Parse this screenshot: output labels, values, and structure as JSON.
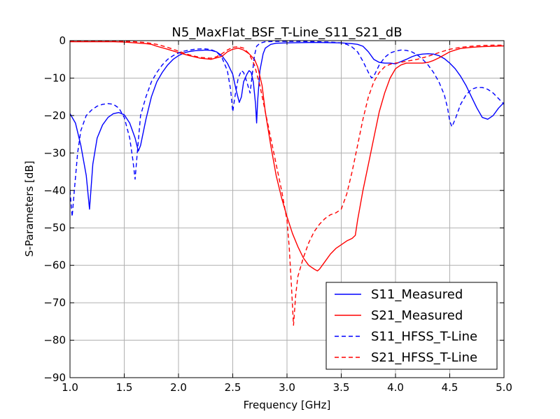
{
  "chart_data": {
    "type": "line",
    "title": "N5_MaxFlat_BSF_T-Line_S11_S21_dB",
    "xlabel": "Frequency [GHz]",
    "ylabel": "S-Parameters [dB]",
    "xlim": [
      1.0,
      5.0
    ],
    "ylim": [
      -90,
      0
    ],
    "xticks": [
      1.0,
      1.5,
      2.0,
      2.5,
      3.0,
      3.5,
      4.0,
      4.5,
      5.0
    ],
    "xtick_labels": [
      "1.0",
      "1.5",
      "2.0",
      "2.5",
      "3.0",
      "3.5",
      "4.0",
      "4.5",
      "5.0"
    ],
    "yticks": [
      0,
      -10,
      -20,
      -30,
      -40,
      -50,
      -60,
      -70,
      -80,
      -90
    ],
    "ytick_labels": [
      "0",
      "−10",
      "−20",
      "−30",
      "−40",
      "−50",
      "−60",
      "−70",
      "−80",
      "−90"
    ],
    "grid": true,
    "legend_position": "bottom-right",
    "series": [
      {
        "name": "S11_Measured",
        "color": "#0000ff",
        "dash": "solid",
        "points": [
          [
            1.0,
            -19.5
          ],
          [
            1.05,
            -22
          ],
          [
            1.1,
            -28
          ],
          [
            1.15,
            -36
          ],
          [
            1.18,
            -45
          ],
          [
            1.21,
            -33
          ],
          [
            1.25,
            -26
          ],
          [
            1.3,
            -22.5
          ],
          [
            1.35,
            -20.5
          ],
          [
            1.4,
            -19.5
          ],
          [
            1.45,
            -19.2
          ],
          [
            1.5,
            -19.8
          ],
          [
            1.55,
            -22
          ],
          [
            1.6,
            -26
          ],
          [
            1.63,
            -29.5
          ],
          [
            1.65,
            -28
          ],
          [
            1.7,
            -21
          ],
          [
            1.75,
            -15
          ],
          [
            1.8,
            -11
          ],
          [
            1.85,
            -8.5
          ],
          [
            1.9,
            -6.5
          ],
          [
            1.95,
            -5
          ],
          [
            2.0,
            -4
          ],
          [
            2.05,
            -3.3
          ],
          [
            2.1,
            -2.9
          ],
          [
            2.15,
            -2.7
          ],
          [
            2.2,
            -2.6
          ],
          [
            2.25,
            -2.5
          ],
          [
            2.3,
            -2.6
          ],
          [
            2.35,
            -3
          ],
          [
            2.4,
            -4
          ],
          [
            2.45,
            -6
          ],
          [
            2.5,
            -9
          ],
          [
            2.53,
            -13
          ],
          [
            2.56,
            -16.5
          ],
          [
            2.58,
            -15
          ],
          [
            2.6,
            -11
          ],
          [
            2.63,
            -9
          ],
          [
            2.65,
            -8
          ],
          [
            2.67,
            -8.5
          ],
          [
            2.69,
            -11
          ],
          [
            2.71,
            -17
          ],
          [
            2.72,
            -22
          ],
          [
            2.73,
            -16
          ],
          [
            2.75,
            -8
          ],
          [
            2.78,
            -3.5
          ],
          [
            2.8,
            -2
          ],
          [
            2.85,
            -1
          ],
          [
            2.9,
            -0.7
          ],
          [
            3.0,
            -0.6
          ],
          [
            3.1,
            -0.55
          ],
          [
            3.2,
            -0.5
          ],
          [
            3.3,
            -0.5
          ],
          [
            3.4,
            -0.55
          ],
          [
            3.5,
            -0.6
          ],
          [
            3.6,
            -0.8
          ],
          [
            3.65,
            -1
          ],
          [
            3.7,
            -1.5
          ],
          [
            3.75,
            -3
          ],
          [
            3.8,
            -5
          ],
          [
            3.85,
            -5.8
          ],
          [
            3.9,
            -6
          ],
          [
            3.95,
            -6
          ],
          [
            4.0,
            -6.2
          ],
          [
            4.05,
            -5.6
          ],
          [
            4.1,
            -5
          ],
          [
            4.15,
            -4.3
          ],
          [
            4.2,
            -3.8
          ],
          [
            4.25,
            -3.6
          ],
          [
            4.3,
            -3.5
          ],
          [
            4.35,
            -3.6
          ],
          [
            4.4,
            -4
          ],
          [
            4.45,
            -4.8
          ],
          [
            4.5,
            -6
          ],
          [
            4.55,
            -7.5
          ],
          [
            4.6,
            -9.5
          ],
          [
            4.65,
            -12
          ],
          [
            4.7,
            -15
          ],
          [
            4.75,
            -18
          ],
          [
            4.8,
            -20.5
          ],
          [
            4.85,
            -21
          ],
          [
            4.9,
            -20
          ],
          [
            4.95,
            -18
          ],
          [
            5.0,
            -16.5
          ]
        ]
      },
      {
        "name": "S21_Measured",
        "color": "#ff0000",
        "dash": "solid",
        "points": [
          [
            1.0,
            -0.3
          ],
          [
            1.2,
            -0.3
          ],
          [
            1.4,
            -0.3
          ],
          [
            1.5,
            -0.4
          ],
          [
            1.6,
            -0.6
          ],
          [
            1.7,
            -0.8
          ],
          [
            1.75,
            -1
          ],
          [
            1.8,
            -1.5
          ],
          [
            1.9,
            -2.3
          ],
          [
            2.0,
            -3.2
          ],
          [
            2.1,
            -4
          ],
          [
            2.2,
            -4.7
          ],
          [
            2.3,
            -5
          ],
          [
            2.4,
            -4.2
          ],
          [
            2.45,
            -3
          ],
          [
            2.5,
            -2.3
          ],
          [
            2.55,
            -2
          ],
          [
            2.6,
            -2.5
          ],
          [
            2.65,
            -3.5
          ],
          [
            2.7,
            -5
          ],
          [
            2.73,
            -7
          ],
          [
            2.77,
            -12
          ],
          [
            2.8,
            -19
          ],
          [
            2.85,
            -28
          ],
          [
            2.9,
            -36
          ],
          [
            2.95,
            -42
          ],
          [
            3.0,
            -47
          ],
          [
            3.05,
            -51.5
          ],
          [
            3.1,
            -55
          ],
          [
            3.15,
            -58
          ],
          [
            3.2,
            -60
          ],
          [
            3.25,
            -61
          ],
          [
            3.28,
            -61.5
          ],
          [
            3.3,
            -61
          ],
          [
            3.35,
            -59
          ],
          [
            3.4,
            -57
          ],
          [
            3.45,
            -55.5
          ],
          [
            3.5,
            -54.5
          ],
          [
            3.55,
            -53.5
          ],
          [
            3.6,
            -52.8
          ],
          [
            3.63,
            -52
          ],
          [
            3.65,
            -48
          ],
          [
            3.7,
            -40
          ],
          [
            3.75,
            -33
          ],
          [
            3.8,
            -26
          ],
          [
            3.85,
            -19
          ],
          [
            3.9,
            -14
          ],
          [
            3.95,
            -10
          ],
          [
            4.0,
            -7.5
          ],
          [
            4.05,
            -6.5
          ],
          [
            4.1,
            -6
          ],
          [
            4.15,
            -6
          ],
          [
            4.2,
            -6
          ],
          [
            4.25,
            -6
          ],
          [
            4.3,
            -5.8
          ],
          [
            4.35,
            -5.3
          ],
          [
            4.4,
            -4.6
          ],
          [
            4.45,
            -3.8
          ],
          [
            4.5,
            -3
          ],
          [
            4.55,
            -2.5
          ],
          [
            4.6,
            -2.1
          ],
          [
            4.7,
            -1.8
          ],
          [
            4.8,
            -1.6
          ],
          [
            4.9,
            -1.5
          ],
          [
            5.0,
            -1.4
          ]
        ]
      },
      {
        "name": "S11_HFSS_T-Line",
        "color": "#0000ff",
        "dash": "dashed",
        "points": [
          [
            1.0,
            -40
          ],
          [
            1.02,
            -47
          ],
          [
            1.04,
            -40
          ],
          [
            1.07,
            -30
          ],
          [
            1.1,
            -24
          ],
          [
            1.15,
            -20
          ],
          [
            1.2,
            -18.5
          ],
          [
            1.25,
            -17.5
          ],
          [
            1.3,
            -17
          ],
          [
            1.35,
            -16.8
          ],
          [
            1.4,
            -17
          ],
          [
            1.45,
            -18
          ],
          [
            1.5,
            -20.5
          ],
          [
            1.55,
            -26
          ],
          [
            1.58,
            -32
          ],
          [
            1.6,
            -37
          ],
          [
            1.62,
            -30
          ],
          [
            1.65,
            -20
          ],
          [
            1.7,
            -15
          ],
          [
            1.75,
            -11
          ],
          [
            1.8,
            -8.5
          ],
          [
            1.85,
            -6.5
          ],
          [
            1.9,
            -5
          ],
          [
            1.95,
            -4
          ],
          [
            2.0,
            -3.3
          ],
          [
            2.05,
            -2.8
          ],
          [
            2.1,
            -2.5
          ],
          [
            2.15,
            -2.3
          ],
          [
            2.2,
            -2.2
          ],
          [
            2.25,
            -2.2
          ],
          [
            2.3,
            -2.4
          ],
          [
            2.35,
            -3
          ],
          [
            2.4,
            -4.5
          ],
          [
            2.45,
            -8
          ],
          [
            2.48,
            -13
          ],
          [
            2.5,
            -19
          ],
          [
            2.52,
            -15
          ],
          [
            2.55,
            -10
          ],
          [
            2.58,
            -8
          ],
          [
            2.6,
            -8.5
          ],
          [
            2.63,
            -11
          ],
          [
            2.66,
            -14
          ],
          [
            2.68,
            -9
          ],
          [
            2.7,
            -4
          ],
          [
            2.72,
            -1.5
          ],
          [
            2.75,
            -0.7
          ],
          [
            2.8,
            -0.3
          ],
          [
            2.9,
            -0.2
          ],
          [
            3.0,
            -0.2
          ],
          [
            3.1,
            -0.2
          ],
          [
            3.2,
            -0.25
          ],
          [
            3.3,
            -0.3
          ],
          [
            3.4,
            -0.4
          ],
          [
            3.5,
            -0.6
          ],
          [
            3.55,
            -1
          ],
          [
            3.6,
            -1.7
          ],
          [
            3.65,
            -3
          ],
          [
            3.7,
            -5.5
          ],
          [
            3.75,
            -8.5
          ],
          [
            3.78,
            -10
          ],
          [
            3.8,
            -9.5
          ],
          [
            3.85,
            -6.5
          ],
          [
            3.9,
            -4.5
          ],
          [
            3.95,
            -3.3
          ],
          [
            4.0,
            -2.8
          ],
          [
            4.05,
            -2.5
          ],
          [
            4.1,
            -2.6
          ],
          [
            4.15,
            -3
          ],
          [
            4.2,
            -3.8
          ],
          [
            4.25,
            -5
          ],
          [
            4.3,
            -6.5
          ],
          [
            4.35,
            -8.5
          ],
          [
            4.4,
            -11
          ],
          [
            4.45,
            -14.5
          ],
          [
            4.48,
            -18
          ],
          [
            4.5,
            -21.5
          ],
          [
            4.52,
            -23
          ],
          [
            4.55,
            -21
          ],
          [
            4.6,
            -17
          ],
          [
            4.65,
            -14.5
          ],
          [
            4.7,
            -13
          ],
          [
            4.75,
            -12.5
          ],
          [
            4.8,
            -12.5
          ],
          [
            4.85,
            -13
          ],
          [
            4.9,
            -14
          ],
          [
            4.95,
            -15.5
          ],
          [
            5.0,
            -17
          ]
        ]
      },
      {
        "name": "S21_HFSS_T-Line",
        "color": "#ff0000",
        "dash": "dashed",
        "points": [
          [
            1.0,
            -0.1
          ],
          [
            1.3,
            -0.1
          ],
          [
            1.5,
            -0.15
          ],
          [
            1.6,
            -0.3
          ],
          [
            1.7,
            -0.5
          ],
          [
            1.8,
            -1
          ],
          [
            1.9,
            -1.8
          ],
          [
            2.0,
            -2.8
          ],
          [
            2.1,
            -3.8
          ],
          [
            2.2,
            -4.5
          ],
          [
            2.3,
            -4.7
          ],
          [
            2.35,
            -4.3
          ],
          [
            2.4,
            -3.5
          ],
          [
            2.45,
            -2.5
          ],
          [
            2.5,
            -1.8
          ],
          [
            2.55,
            -1.6
          ],
          [
            2.6,
            -2
          ],
          [
            2.65,
            -3.5
          ],
          [
            2.7,
            -6.5
          ],
          [
            2.75,
            -12
          ],
          [
            2.8,
            -19
          ],
          [
            2.85,
            -26
          ],
          [
            2.9,
            -33
          ],
          [
            2.95,
            -40
          ],
          [
            3.0,
            -48
          ],
          [
            3.02,
            -55
          ],
          [
            3.04,
            -65
          ],
          [
            3.06,
            -76
          ],
          [
            3.08,
            -68
          ],
          [
            3.1,
            -63
          ],
          [
            3.15,
            -58
          ],
          [
            3.2,
            -54
          ],
          [
            3.25,
            -51
          ],
          [
            3.3,
            -49
          ],
          [
            3.35,
            -47.5
          ],
          [
            3.4,
            -46.5
          ],
          [
            3.45,
            -46
          ],
          [
            3.5,
            -45
          ],
          [
            3.55,
            -41
          ],
          [
            3.6,
            -35
          ],
          [
            3.65,
            -28
          ],
          [
            3.7,
            -21
          ],
          [
            3.75,
            -15
          ],
          [
            3.8,
            -11
          ],
          [
            3.85,
            -8.5
          ],
          [
            3.9,
            -7
          ],
          [
            3.95,
            -6.3
          ],
          [
            4.0,
            -6
          ],
          [
            4.05,
            -5.8
          ],
          [
            4.1,
            -5.5
          ],
          [
            4.2,
            -5
          ],
          [
            4.3,
            -4.2
          ],
          [
            4.4,
            -3.2
          ],
          [
            4.5,
            -2.3
          ],
          [
            4.6,
            -1.8
          ],
          [
            4.7,
            -1.5
          ],
          [
            4.8,
            -1.3
          ],
          [
            4.9,
            -1.2
          ],
          [
            5.0,
            -1.2
          ]
        ]
      }
    ]
  }
}
